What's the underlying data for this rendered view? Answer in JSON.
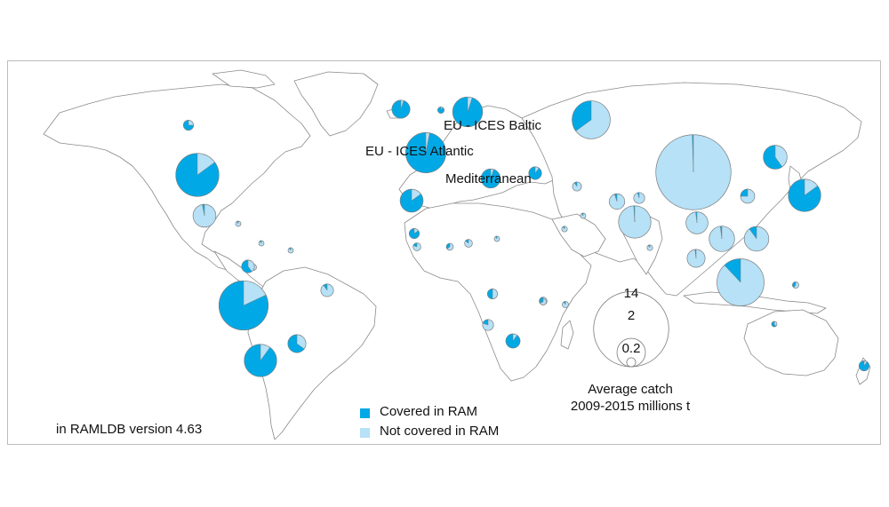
{
  "colors": {
    "covered": "#00a9e6",
    "not_covered": "#b6e1f7",
    "pie_stroke": "#7d7d7d",
    "land_stroke": "#8a8a8a"
  },
  "region_labels": {
    "baltic": "EU - ICES Baltic",
    "atlantic": "EU - ICES Atlantic",
    "mediterranean": "Mediterranean"
  },
  "size_legend": {
    "values": [
      "14",
      "2",
      "0.2"
    ],
    "caption_line1": "Average catch",
    "caption_line2": "2009-2015 millions t"
  },
  "color_legend": {
    "covered_label": "Covered in RAM",
    "not_covered_label": "Not covered in RAM"
  },
  "footer_note": "in RAMLDB version 4.63",
  "pies": [
    {
      "region": "canada-west",
      "catch_mt": 0.25,
      "covered": 0.75
    },
    {
      "region": "usa",
      "catch_mt": 4.6,
      "covered": 0.85
    },
    {
      "region": "mexico",
      "catch_mt": 1.3,
      "covered": 0.03
    },
    {
      "region": "guatemala",
      "catch_mt": 0.03,
      "covered": 0.1
    },
    {
      "region": "nicaragua",
      "catch_mt": 0.04,
      "covered": 0.1
    },
    {
      "region": "colombia",
      "catch_mt": 0.1,
      "covered": 0.2
    },
    {
      "region": "venezuela",
      "catch_mt": 0.04,
      "covered": 0.1
    },
    {
      "region": "ecuador",
      "catch_mt": 0.4,
      "covered": 0.6
    },
    {
      "region": "peru",
      "catch_mt": 6.0,
      "covered": 0.82
    },
    {
      "region": "brazil",
      "catch_mt": 0.4,
      "covered": 0.1
    },
    {
      "region": "argentina",
      "catch_mt": 0.8,
      "covered": 0.65
    },
    {
      "region": "chile",
      "catch_mt": 2.6,
      "covered": 0.9
    },
    {
      "region": "greenland-iceland",
      "catch_mt": 0.8,
      "covered": 0.95
    },
    {
      "region": "faroe",
      "catch_mt": 0.1,
      "covered": 0.9
    },
    {
      "region": "norway",
      "catch_mt": 2.2,
      "covered": 0.95
    },
    {
      "region": "eu-ices-atlantic",
      "catch_mt": 4.0,
      "covered": 0.97
    },
    {
      "region": "russia",
      "catch_mt": 3.6,
      "covered": 0.35
    },
    {
      "region": "morocco",
      "catch_mt": 1.3,
      "covered": 0.85
    },
    {
      "region": "mediterranean",
      "catch_mt": 0.9,
      "covered": 0.95
    },
    {
      "region": "black-sea",
      "catch_mt": 0.4,
      "covered": 0.9
    },
    {
      "region": "mauritania",
      "catch_mt": 0.25,
      "covered": 0.85
    },
    {
      "region": "senegal",
      "catch_mt": 0.15,
      "covered": 0.2
    },
    {
      "region": "west-africa-1",
      "catch_mt": 0.12,
      "covered": 0.35
    },
    {
      "region": "nigeria",
      "catch_mt": 0.15,
      "covered": 0.15
    },
    {
      "region": "west-africa-2",
      "catch_mt": 0.05,
      "covered": 0.1
    },
    {
      "region": "egypt",
      "catch_mt": 0.2,
      "covered": 0.1
    },
    {
      "region": "iran",
      "catch_mt": 0.6,
      "covered": 0.05
    },
    {
      "region": "pakistan",
      "catch_mt": 0.3,
      "covered": 0.05
    },
    {
      "region": "oman",
      "catch_mt": 0.06,
      "covered": 0.1
    },
    {
      "region": "yemen",
      "catch_mt": 0.08,
      "covered": 0.1
    },
    {
      "region": "india",
      "catch_mt": 2.6,
      "covered": 0.01
    },
    {
      "region": "sri-lanka",
      "catch_mt": 0.08,
      "covered": 0.1
    },
    {
      "region": "china",
      "catch_mt": 14.0,
      "covered": 0.005
    },
    {
      "region": "korea",
      "catch_mt": 0.5,
      "covered": 0.25
    },
    {
      "region": "japan",
      "catch_mt": 2.6,
      "covered": 0.85
    },
    {
      "region": "russia-far-east",
      "catch_mt": 1.4,
      "covered": 0.6
    },
    {
      "region": "bangladesh-myanmar",
      "catch_mt": 1.2,
      "covered": 0.02
    },
    {
      "region": "vietnam",
      "catch_mt": 1.6,
      "covered": 0.02
    },
    {
      "region": "philippines",
      "catch_mt": 1.5,
      "covered": 0.1
    },
    {
      "region": "thailand",
      "catch_mt": 0.8,
      "covered": 0.02
    },
    {
      "region": "indonesia",
      "catch_mt": 5.5,
      "covered": 0.12
    },
    {
      "region": "png",
      "catch_mt": 0.1,
      "covered": 0.4
    },
    {
      "region": "angola",
      "catch_mt": 0.25,
      "covered": 0.5
    },
    {
      "region": "namibia",
      "catch_mt": 0.15,
      "covered": 0.6
    },
    {
      "region": "mozambique",
      "catch_mt": 0.1,
      "covered": 0.3
    },
    {
      "region": "madagascar",
      "catch_mt": 0.1,
      "covered": 0.1
    },
    {
      "region": "south-africa-west",
      "catch_mt": 0.3,
      "covered": 0.2
    },
    {
      "region": "south-africa",
      "catch_mt": 0.5,
      "covered": 0.9
    },
    {
      "region": "australia",
      "catch_mt": 0.05,
      "covered": 0.6
    },
    {
      "region": "new-zealand",
      "catch_mt": 0.25,
      "covered": 0.9
    }
  ]
}
